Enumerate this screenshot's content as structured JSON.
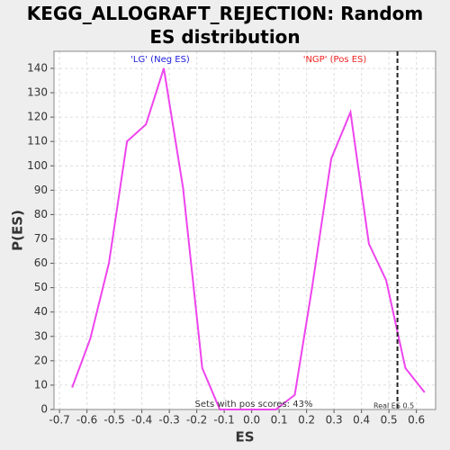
{
  "chart_data": {
    "type": "line",
    "title": "KEGG_ALLOGRAFT_REJECTION: Random ES distribution",
    "xlabel": "ES",
    "ylabel": "P(ES)",
    "x": [
      -0.654,
      -0.588,
      -0.52,
      -0.454,
      -0.385,
      -0.32,
      -0.25,
      -0.18,
      -0.116,
      -0.047,
      0.019,
      0.088,
      0.157,
      0.22,
      0.29,
      0.36,
      0.427,
      0.49,
      0.56,
      0.63
    ],
    "values": [
      9,
      29,
      60,
      110,
      117,
      140,
      91,
      17,
      0,
      0,
      0,
      0,
      6,
      50,
      103,
      122,
      68,
      53,
      17,
      7
    ],
    "color": "#ee44ee",
    "xlim": [
      -0.72,
      0.67
    ],
    "ylim": [
      0,
      147
    ],
    "xticks": [
      -0.7,
      -0.6,
      -0.5,
      -0.4,
      -0.3,
      -0.2,
      -0.1,
      {
        "value": 0,
        "label": "0.0"
      },
      0.1,
      0.2,
      0.3,
      0.4,
      0.5,
      0.6
    ],
    "yticks": [
      0,
      10,
      20,
      30,
      40,
      50,
      60,
      70,
      80,
      90,
      100,
      110,
      120,
      130,
      140
    ],
    "grid": true,
    "real_es": 0.531,
    "annotations": [
      {
        "text": "'LG' (Neg ES)",
        "color": "#2222dd"
      },
      {
        "text": "'NGP' (Pos ES)",
        "color": "#ee2222"
      },
      {
        "text": "Sets with pos scores: 43%",
        "color": "#333333"
      },
      {
        "text": "Real ES 0.5",
        "color": "#333333"
      }
    ]
  }
}
